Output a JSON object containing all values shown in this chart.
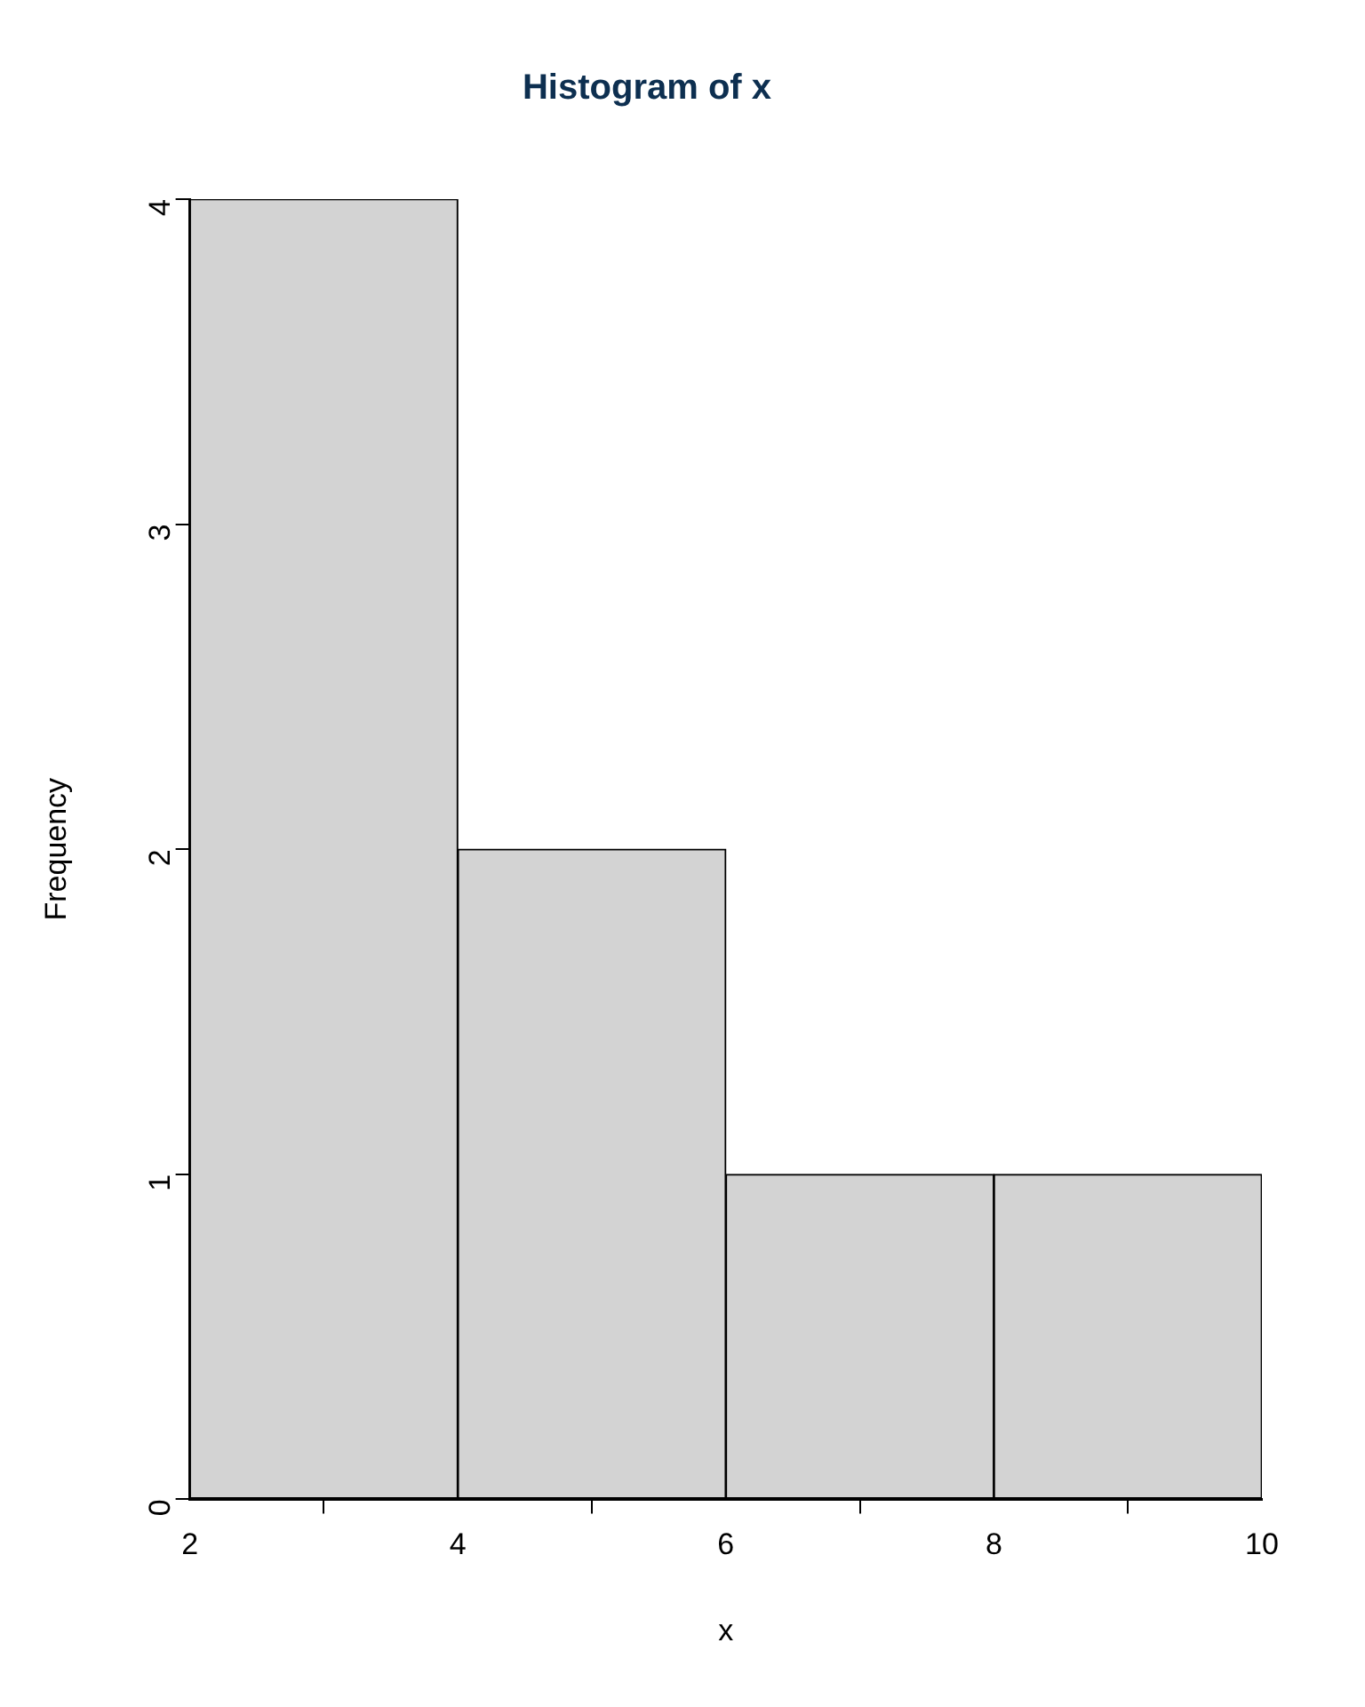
{
  "chart_data": {
    "type": "histogram",
    "title": "Histogram of x",
    "xlabel": "x",
    "ylabel": "Frequency",
    "bins": [
      2,
      4,
      6,
      8,
      10
    ],
    "values": [
      4,
      2,
      1,
      1
    ],
    "color": "#d3d3d3",
    "xlim": [
      2,
      10
    ],
    "xticks": [
      2,
      4,
      6,
      8,
      10
    ],
    "ylim": [
      0,
      4
    ],
    "yticks": [
      0,
      1,
      2,
      3,
      4
    ],
    "grid": false,
    "legend": false
  }
}
